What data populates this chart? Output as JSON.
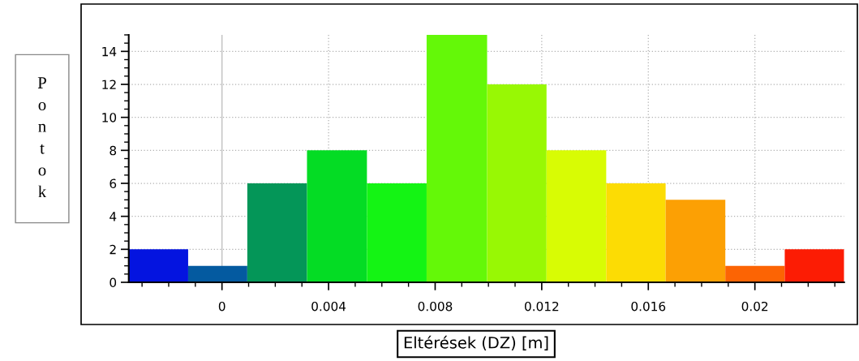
{
  "chart_data": {
    "type": "histogram",
    "xlabel": "Eltérések (DZ) [m]",
    "ylabel": "Pontok",
    "bins": [
      -0.0035,
      -0.00127,
      0.00095,
      0.00319,
      0.00544,
      0.00768,
      0.00995,
      0.01218,
      0.01442,
      0.01665,
      0.01889,
      0.02112,
      0.02335
    ],
    "values": [
      2,
      1,
      6,
      8,
      6,
      15,
      12,
      8,
      6,
      5,
      1,
      2
    ],
    "colors": [
      "#0414e0",
      "#045aa0",
      "#049658",
      "#04dc24",
      "#14f414",
      "#64f808",
      "#98f804",
      "#d8fc04",
      "#fcdc04",
      "#fca004",
      "#fc6404",
      "#fc1c04"
    ],
    "xlim": [
      -0.0035,
      0.02335
    ],
    "ylim": [
      0,
      15
    ],
    "xticks": [
      {
        "value": -0.003,
        "label": null
      },
      {
        "value": -0.002,
        "label": null
      },
      {
        "value": -0.001,
        "label": null
      },
      0,
      {
        "value": 0.001,
        "label": null
      },
      {
        "value": 0.002,
        "label": null
      },
      {
        "value": 0.003,
        "label": null
      },
      0.004,
      {
        "value": 0.005,
        "label": null
      },
      {
        "value": 0.006,
        "label": null
      },
      {
        "value": 0.007,
        "label": null
      },
      0.008,
      {
        "value": 0.009,
        "label": null
      },
      {
        "value": 0.01,
        "label": null
      },
      {
        "value": 0.011,
        "label": null
      },
      0.012,
      {
        "value": 0.013,
        "label": null
      },
      {
        "value": 0.014,
        "label": null
      },
      {
        "value": 0.015,
        "label": null
      },
      0.016,
      {
        "value": 0.017,
        "label": null
      },
      {
        "value": 0.018,
        "label": null
      },
      {
        "value": 0.019,
        "label": null
      },
      0.02,
      {
        "value": 0.021,
        "label": null
      },
      {
        "value": 0.022,
        "label": null
      },
      {
        "value": 0.023,
        "label": null
      }
    ],
    "yticks": [
      0,
      {
        "value": 0.5,
        "label": null
      },
      {
        "value": 1,
        "label": null
      },
      {
        "value": 1.5,
        "label": null
      },
      2,
      {
        "value": 2.5,
        "label": null
      },
      {
        "value": 3,
        "label": null
      },
      {
        "value": 3.5,
        "label": null
      },
      4,
      {
        "value": 4.5,
        "label": null
      },
      {
        "value": 5,
        "label": null
      },
      {
        "value": 5.5,
        "label": null
      },
      6,
      {
        "value": 6.5,
        "label": null
      },
      {
        "value": 7,
        "label": null
      },
      {
        "value": 7.5,
        "label": null
      },
      8,
      {
        "value": 8.5,
        "label": null
      },
      {
        "value": 9,
        "label": null
      },
      {
        "value": 9.5,
        "label": null
      },
      10,
      {
        "value": 10.5,
        "label": null
      },
      {
        "value": 11,
        "label": null
      },
      {
        "value": 11.5,
        "label": null
      },
      12,
      {
        "value": 12.5,
        "label": null
      },
      {
        "value": 13,
        "label": null
      },
      {
        "value": 13.5,
        "label": null
      },
      14,
      {
        "value": 14.5,
        "label": null
      },
      {
        "value": 15,
        "label": null
      }
    ],
    "ref_lines": [
      {
        "axis": "x",
        "value": 0,
        "color": "#c0c0c0"
      }
    ],
    "grid": true
  }
}
